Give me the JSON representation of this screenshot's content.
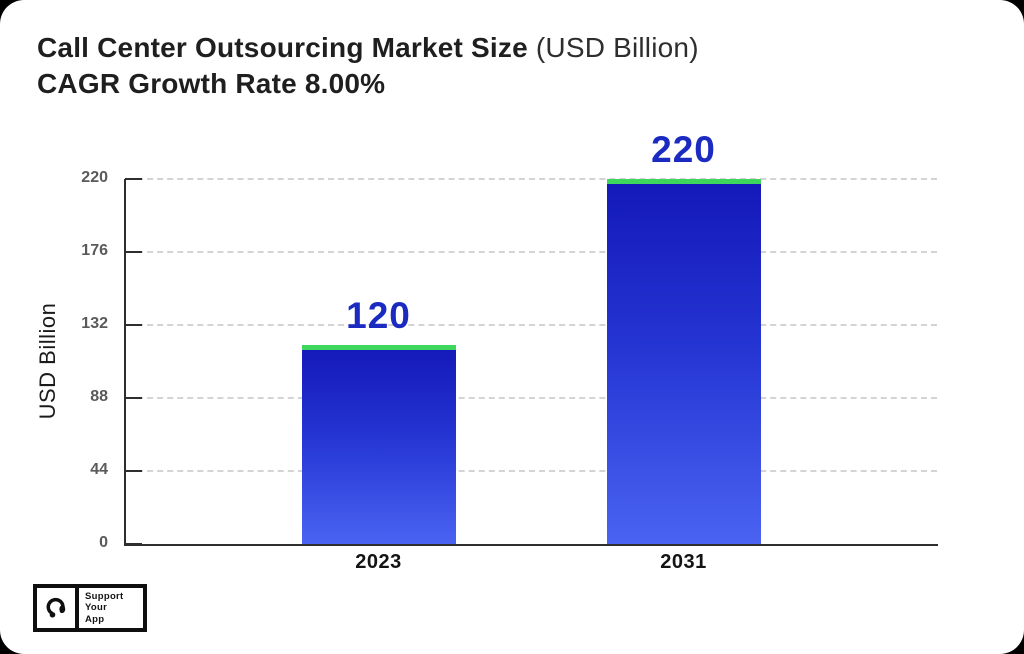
{
  "header": {
    "title_bold": "Call Center Outsourcing Market Size",
    "title_light": " (USD Billion)",
    "subtitle": "CAGR Growth Rate 8.00%"
  },
  "chart_data": {
    "type": "bar",
    "title": "Call Center Outsourcing Market Size (USD Billion)",
    "subtitle": "CAGR Growth Rate 8.00%",
    "categories": [
      "2023",
      "2031"
    ],
    "values": [
      120,
      220
    ],
    "xlabel": "",
    "ylabel": "USD Billion",
    "yticks": [
      0,
      44,
      88,
      132,
      176,
      220
    ],
    "ylim": [
      0,
      220
    ],
    "grid": "horizontal-dashed",
    "legend": "none",
    "colors": {
      "bar_gradient_top": "#1418b8",
      "bar_gradient_bottom": "#4a63f2",
      "bar_top_cap": "#3ed65c",
      "value_label": "#1b2bc2",
      "axis": "#2e2e2e",
      "gridline": "#d4d4d4",
      "tick_label": "#5a5a5a"
    }
  },
  "logo": {
    "icon": "headset-icon",
    "lines": [
      "Support",
      "Your",
      "App"
    ]
  }
}
